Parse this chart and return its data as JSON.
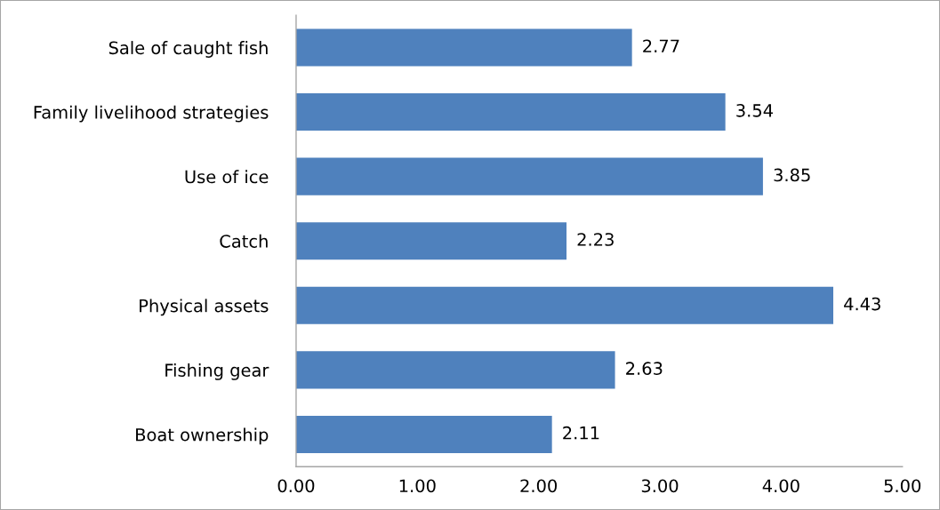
{
  "chart_data": {
    "type": "bar",
    "orientation": "horizontal",
    "categories": [
      "Sale of caught fish",
      "Family livelihood strategies",
      "Use of ice",
      "Catch",
      "Physical assets",
      "Fishing gear",
      "Boat ownership"
    ],
    "values": [
      2.77,
      3.54,
      3.85,
      2.23,
      4.43,
      2.63,
      2.11
    ],
    "color": "#4f81bd",
    "xlim": [
      0,
      5
    ],
    "xticks": [
      {
        "value": 0,
        "label": "0.00"
      },
      {
        "value": 1,
        "label": "1.00"
      },
      {
        "value": 2,
        "label": "2.00"
      },
      {
        "value": 3,
        "label": "3.00"
      },
      {
        "value": 4,
        "label": "4.00"
      },
      {
        "value": 5,
        "label": "5.00"
      }
    ],
    "data_labels": true,
    "grid": false,
    "legend": false
  }
}
